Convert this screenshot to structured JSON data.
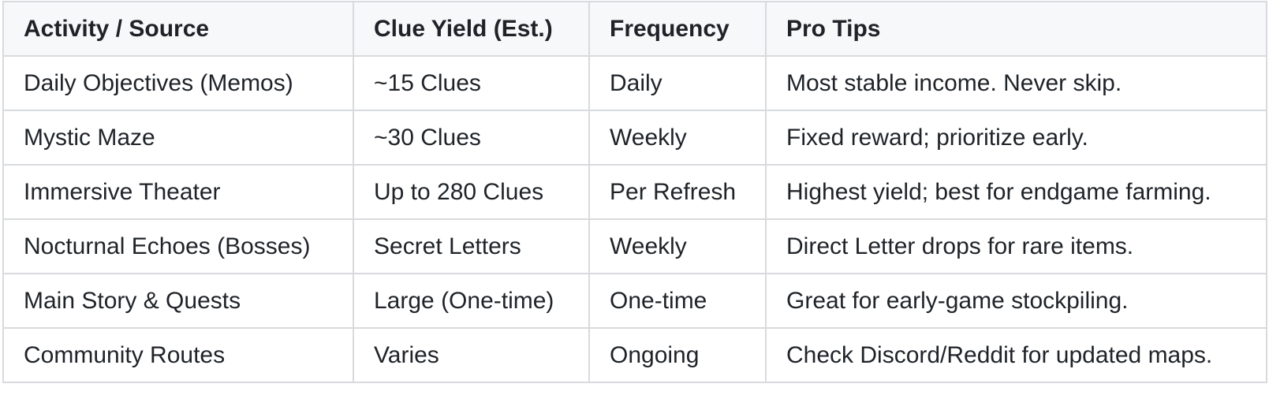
{
  "table": {
    "headers": [
      "Activity / Source",
      "Clue Yield (Est.)",
      "Frequency",
      "Pro Tips"
    ],
    "rows": [
      [
        "Daily Objectives (Memos)",
        "~15 Clues",
        "Daily",
        "Most stable income. Never skip."
      ],
      [
        "Mystic Maze",
        "~30 Clues",
        "Weekly",
        "Fixed reward; prioritize early."
      ],
      [
        "Immersive Theater",
        "Up to 280 Clues",
        "Per Refresh",
        "Highest yield; best for endgame farming."
      ],
      [
        "Nocturnal Echoes (Bosses)",
        "Secret Letters",
        "Weekly",
        "Direct Letter drops for rare items."
      ],
      [
        "Main Story & Quests",
        "Large (One-time)",
        "One-time",
        "Great for early-game stockpiling."
      ],
      [
        "Community Routes",
        "Varies",
        "Ongoing",
        "Check Discord/Reddit for updated maps."
      ]
    ]
  }
}
